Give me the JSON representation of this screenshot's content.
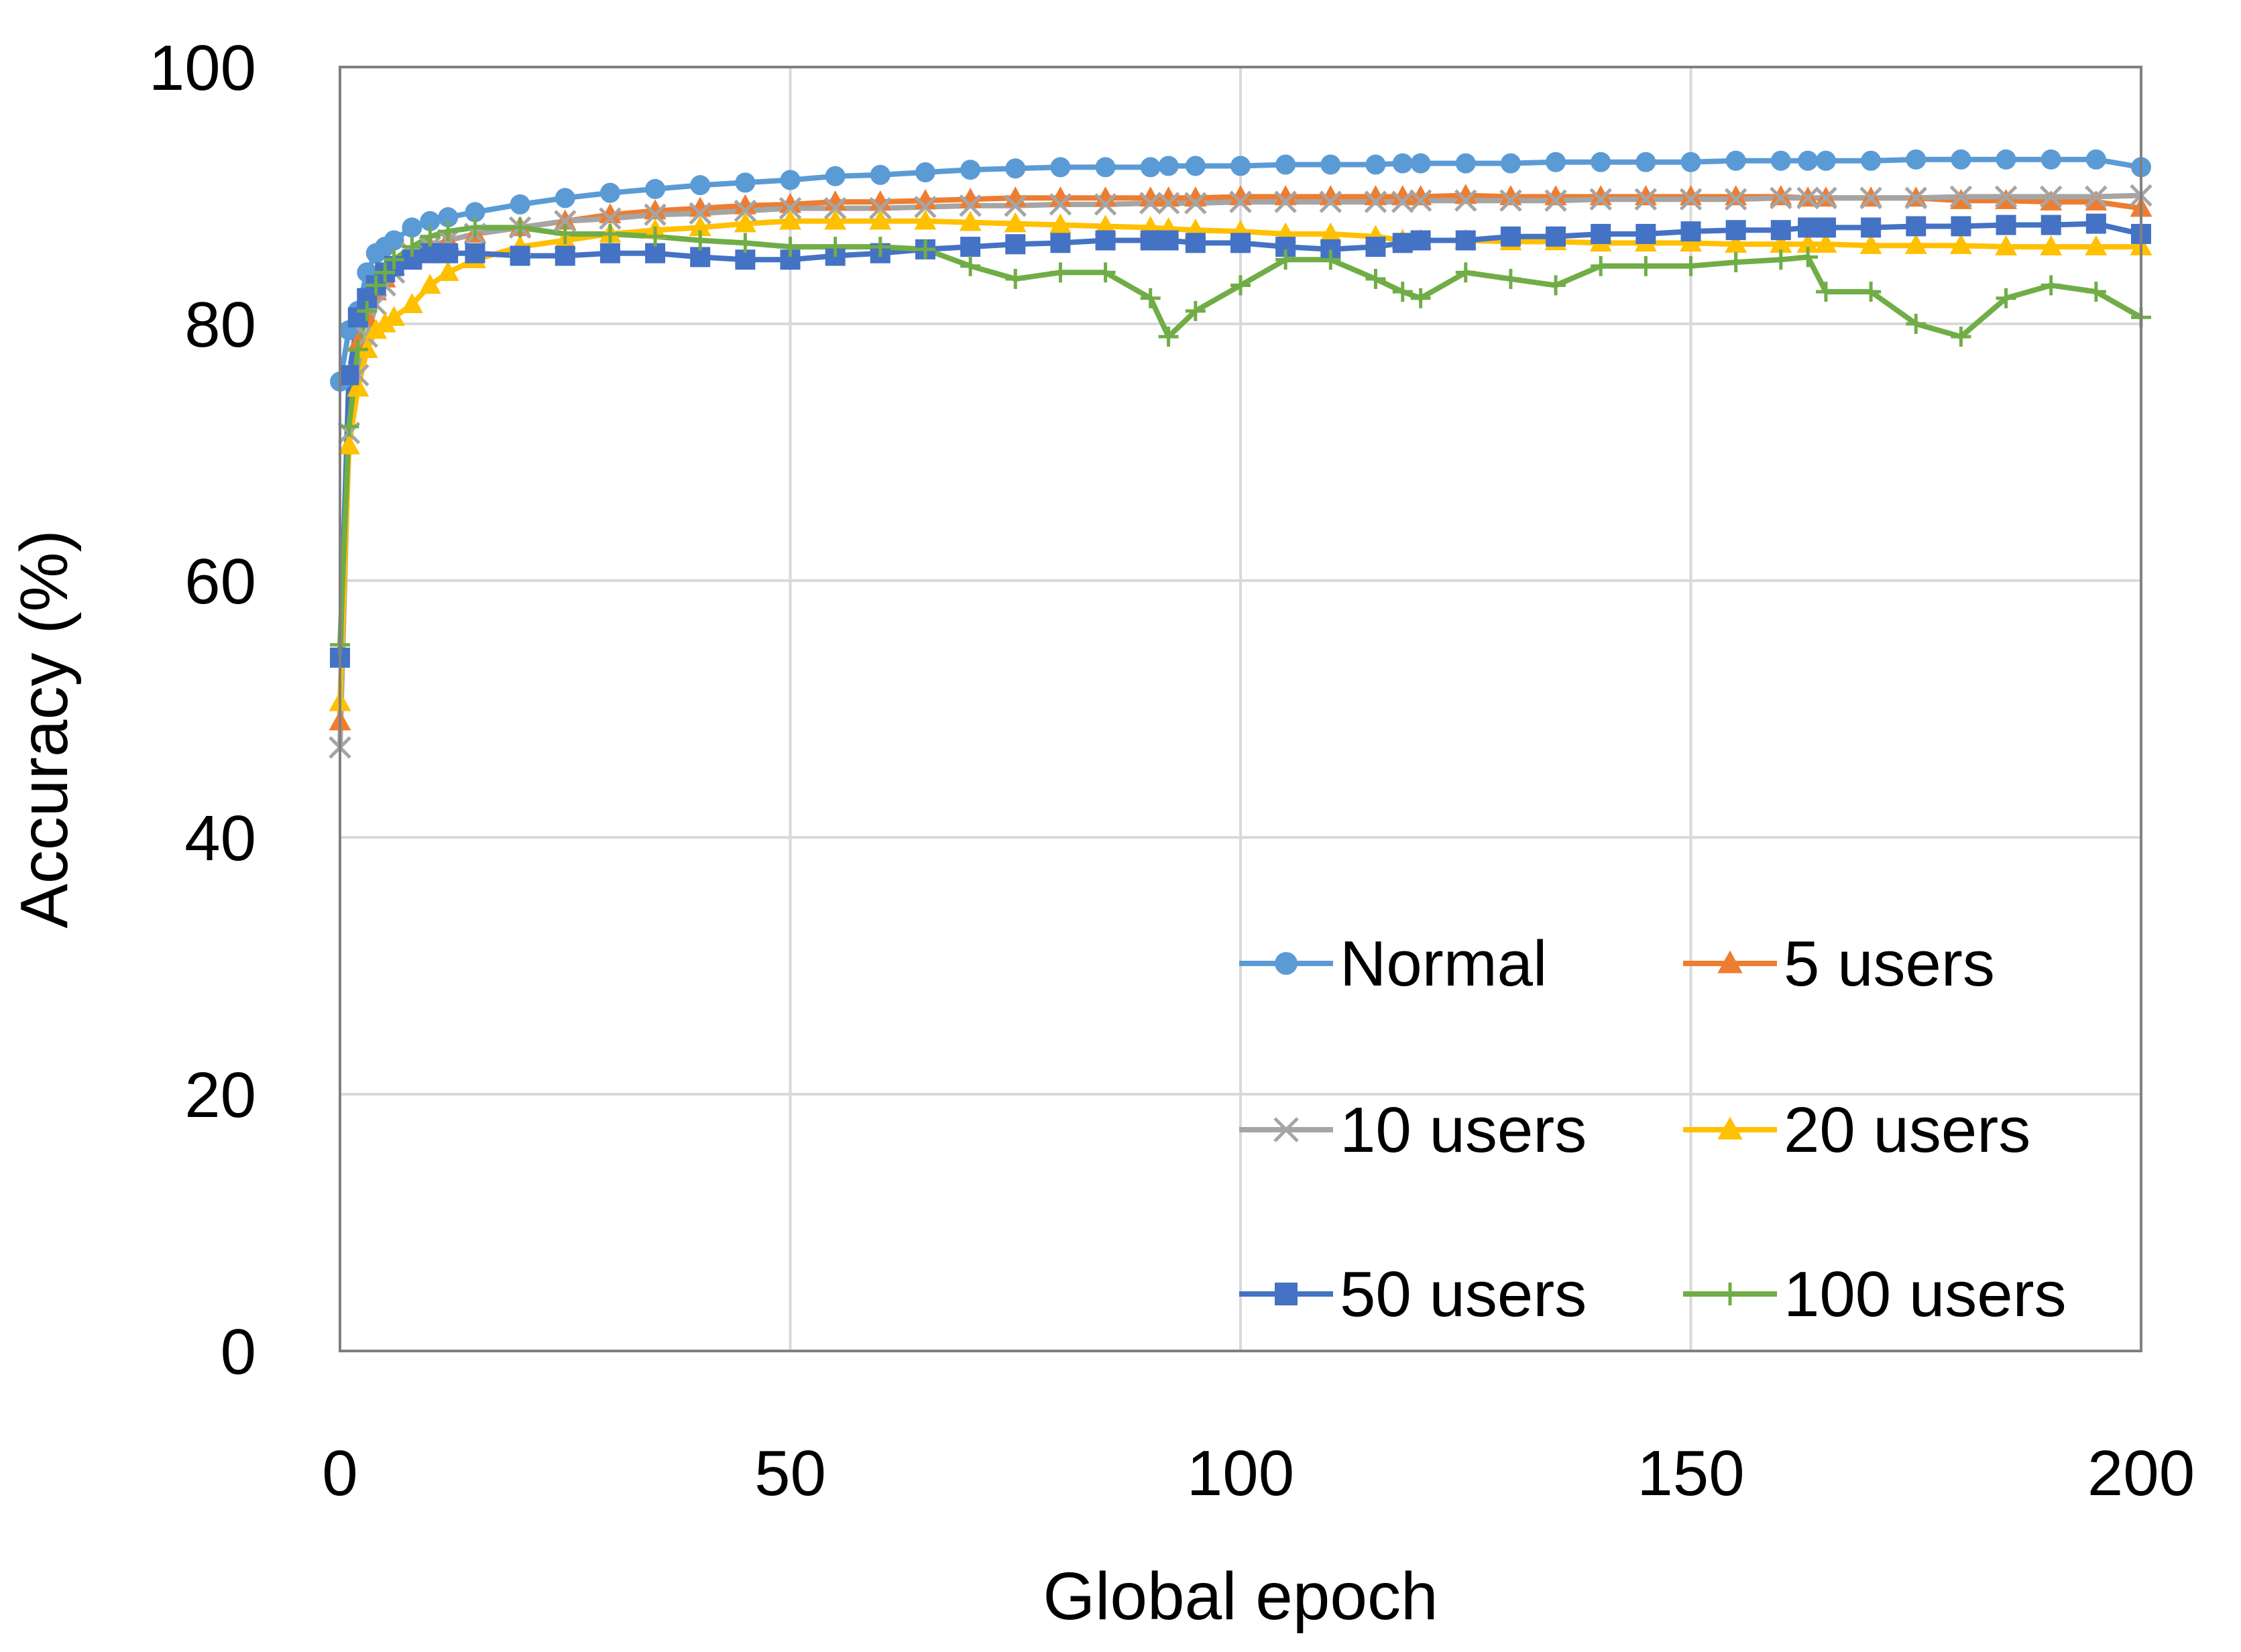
{
  "chart_data": {
    "type": "line",
    "title": "",
    "xlabel": "Global epoch",
    "ylabel": "Accuracy (%)",
    "xlim": [
      0,
      200
    ],
    "ylim": [
      0,
      100
    ],
    "xticks": [
      0,
      50,
      100,
      150,
      200
    ],
    "yticks": [
      0,
      20,
      40,
      60,
      80,
      100
    ],
    "grid": true,
    "legend_position": "bottom-right",
    "legend_columns": 2,
    "x": [
      0,
      1,
      2,
      3,
      4,
      5,
      6,
      8,
      10,
      12,
      15,
      20,
      25,
      30,
      35,
      40,
      45,
      50,
      55,
      60,
      65,
      70,
      75,
      80,
      85,
      90,
      92,
      95,
      100,
      105,
      110,
      115,
      118,
      120,
      125,
      130,
      135,
      140,
      145,
      150,
      155,
      160,
      163,
      165,
      170,
      175,
      180,
      185,
      190,
      195,
      200
    ],
    "series": [
      {
        "name": "Normal",
        "color": "#5B9BD5",
        "marker": "circle",
        "values": [
          75.5,
          79.5,
          81,
          84,
          85.5,
          86,
          86.5,
          87.5,
          88,
          88.3,
          88.7,
          89.3,
          89.8,
          90.2,
          90.5,
          90.8,
          91,
          91.2,
          91.5,
          91.6,
          91.8,
          92,
          92.1,
          92.2,
          92.2,
          92.2,
          92.3,
          92.3,
          92.3,
          92.4,
          92.4,
          92.4,
          92.5,
          92.5,
          92.5,
          92.5,
          92.6,
          92.6,
          92.6,
          92.6,
          92.7,
          92.7,
          92.7,
          92.7,
          92.7,
          92.8,
          92.8,
          92.8,
          92.8,
          92.8,
          92.2
        ]
      },
      {
        "name": "5 users",
        "color": "#ED7D31",
        "marker": "triangle",
        "values": [
          49,
          76,
          78.5,
          80.5,
          82.5,
          83.5,
          84.5,
          85.5,
          86,
          86.5,
          87,
          87.5,
          88,
          88.5,
          88.8,
          89,
          89.2,
          89.3,
          89.5,
          89.5,
          89.6,
          89.7,
          89.8,
          89.8,
          89.8,
          89.8,
          89.8,
          89.8,
          89.9,
          89.9,
          89.9,
          89.9,
          89.9,
          89.9,
          90,
          89.9,
          89.9,
          89.9,
          89.9,
          89.9,
          89.9,
          89.9,
          89.8,
          89.8,
          89.8,
          89.8,
          89.6,
          89.6,
          89.5,
          89.5,
          89
        ]
      },
      {
        "name": "10 users",
        "color": "#A5A5A5",
        "marker": "x",
        "values": [
          47,
          71.5,
          76,
          79,
          81.5,
          83,
          84,
          85.5,
          86,
          86.5,
          87,
          87.5,
          88,
          88.2,
          88.5,
          88.6,
          88.8,
          89,
          89,
          89,
          89.1,
          89.2,
          89.2,
          89.3,
          89.3,
          89.4,
          89.4,
          89.4,
          89.5,
          89.5,
          89.5,
          89.5,
          89.5,
          89.6,
          89.6,
          89.6,
          89.6,
          89.7,
          89.7,
          89.7,
          89.7,
          89.8,
          89.8,
          89.8,
          89.8,
          89.8,
          89.9,
          89.9,
          89.9,
          89.9,
          90
        ]
      },
      {
        "name": "20 users",
        "color": "#FFC000",
        "marker": "triangle",
        "values": [
          50.5,
          70.5,
          75,
          78,
          79.5,
          80,
          80.5,
          81.5,
          83,
          84,
          85,
          86,
          86.5,
          87,
          87.3,
          87.5,
          87.8,
          88,
          88,
          88,
          88,
          87.9,
          87.8,
          87.7,
          87.6,
          87.5,
          87.4,
          87.3,
          87.2,
          87,
          87,
          86.8,
          86.5,
          86.5,
          86.5,
          86.4,
          86.4,
          86.3,
          86.3,
          86.3,
          86.2,
          86.2,
          86.2,
          86.2,
          86.1,
          86.1,
          86.1,
          86,
          86,
          86,
          86
        ]
      },
      {
        "name": "50 users",
        "color": "#4472C4",
        "marker": "square",
        "values": [
          54,
          76,
          80.5,
          82,
          83,
          84,
          84.5,
          85,
          85.5,
          85.5,
          85.5,
          85.3,
          85.3,
          85.5,
          85.5,
          85.2,
          85,
          85,
          85.3,
          85.5,
          85.8,
          86,
          86.2,
          86.3,
          86.5,
          86.5,
          86.5,
          86.3,
          86.3,
          86,
          85.8,
          86,
          86.3,
          86.5,
          86.5,
          86.8,
          86.8,
          87,
          87,
          87.2,
          87.3,
          87.3,
          87.5,
          87.5,
          87.5,
          87.6,
          87.6,
          87.7,
          87.7,
          87.8,
          87
        ]
      },
      {
        "name": "100 users",
        "color": "#70AD47",
        "marker": "plus",
        "values": [
          55,
          72,
          78,
          81,
          83,
          84,
          85,
          86,
          86.8,
          87.2,
          87.5,
          87.5,
          87,
          87,
          86.8,
          86.5,
          86.3,
          86,
          86,
          86,
          85.8,
          84.5,
          83.5,
          84,
          84,
          82,
          79,
          81,
          83,
          85,
          85,
          83.5,
          82.5,
          82,
          84,
          83.5,
          83,
          84.5,
          84.5,
          84.5,
          84.8,
          85,
          85.2,
          82.5,
          82.5,
          80,
          79,
          82,
          83,
          82.5,
          80.5
        ]
      }
    ]
  }
}
